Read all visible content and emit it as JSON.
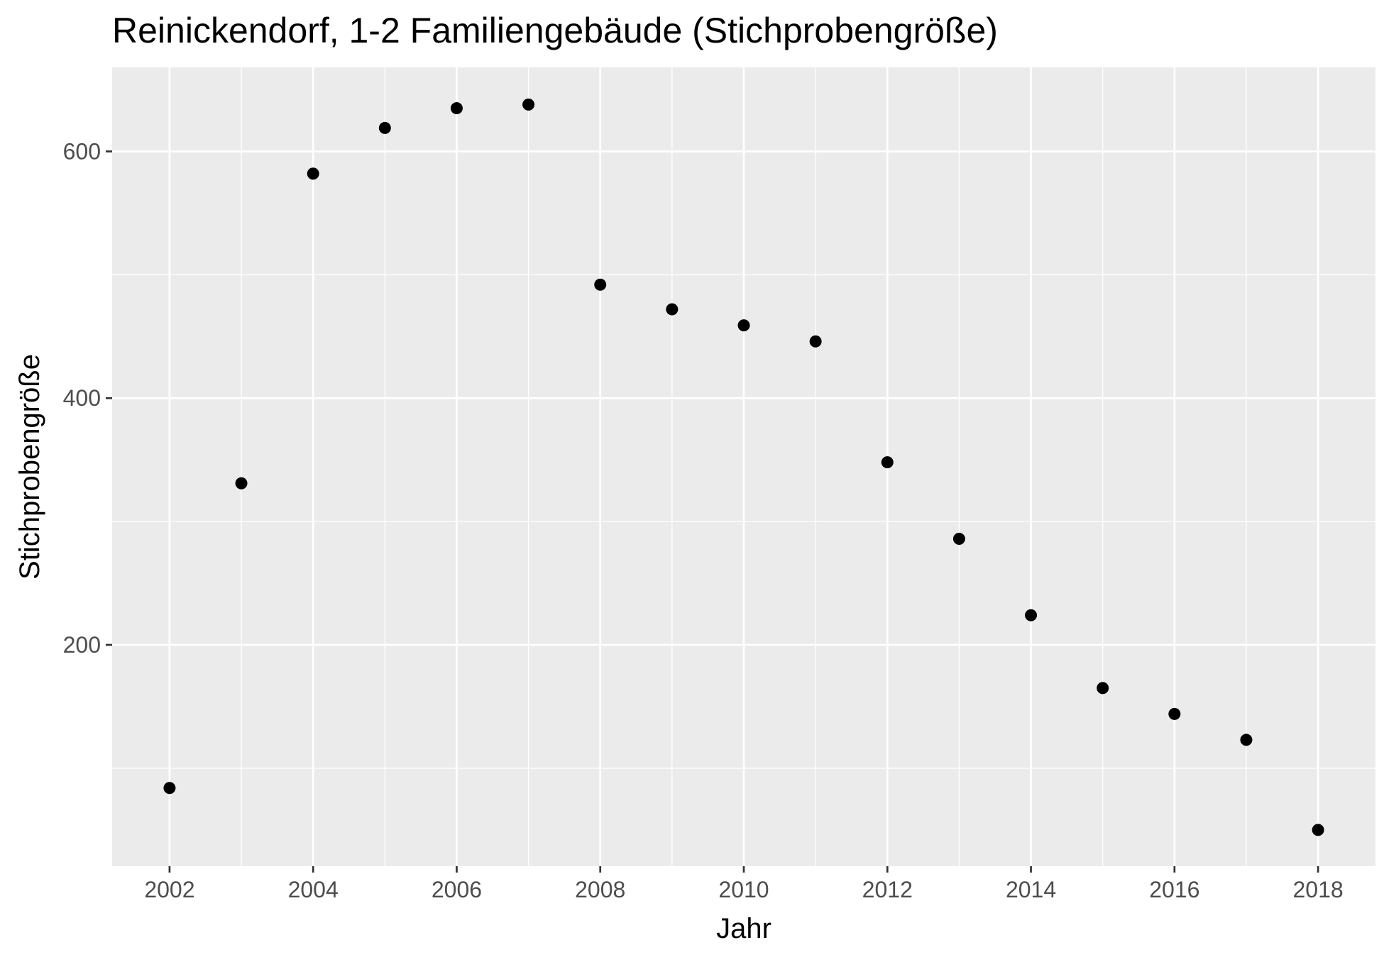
{
  "chart_data": {
    "type": "scatter",
    "title": "Reinickendorf, 1-2 Familiengebäude (Stichprobengröße)",
    "xlabel": "Jahr",
    "ylabel": "Stichprobengröße",
    "x": [
      2002,
      2003,
      2004,
      2005,
      2006,
      2007,
      2008,
      2009,
      2010,
      2011,
      2012,
      2013,
      2014,
      2015,
      2016,
      2017,
      2018
    ],
    "y": [
      84,
      331,
      582,
      619,
      635,
      638,
      492,
      472,
      459,
      446,
      348,
      286,
      224,
      165,
      144,
      123,
      50
    ],
    "x_ticks": [
      2002,
      2004,
      2006,
      2008,
      2010,
      2012,
      2014,
      2016,
      2018
    ],
    "x_tick_labels": [
      "2002",
      "2004",
      "2006",
      "2008",
      "2010",
      "2012",
      "2014",
      "2016",
      "2018"
    ],
    "y_ticks": [
      200,
      400,
      600
    ],
    "y_tick_labels": [
      "200",
      "400",
      "600"
    ],
    "xlim": [
      2001.2,
      2018.8
    ],
    "ylim": [
      20.6,
      668.1
    ],
    "grid": true,
    "legend": "none",
    "colors": {
      "panel": "#EBEBEB",
      "grid": "#FFFFFF",
      "point": "#000000",
      "tick_label": "#4D4D4D",
      "tick_mark": "#333333"
    }
  }
}
